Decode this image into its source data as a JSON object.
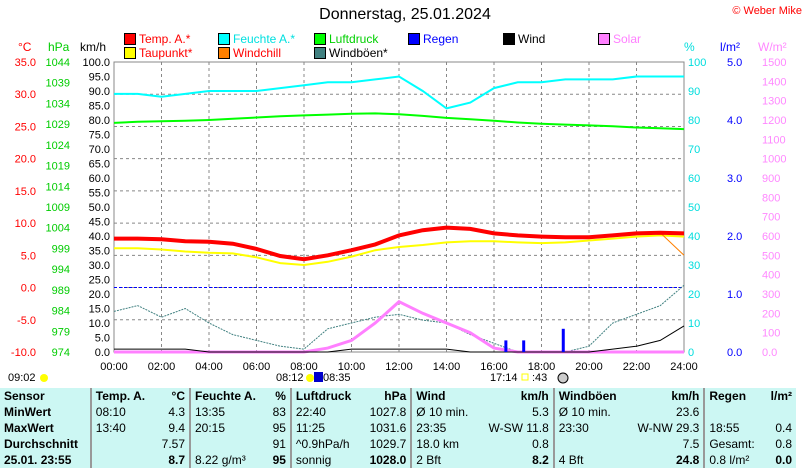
{
  "title": "Donnerstag, 25.01.2024",
  "copyright": "© Weber Mike",
  "axis_units": {
    "temp": "°C",
    "pressure": "hPa",
    "speed": "km/h",
    "humidity": "%",
    "rain": "l/m²",
    "solar": "W/m²"
  },
  "legend": [
    {
      "label": "Temp. A.*",
      "color": "#ff0000",
      "text_color": "#ff0000"
    },
    {
      "label": "Feuchte A.*",
      "color": "#00ffff",
      "text_color": "#00e0e0"
    },
    {
      "label": "Luftdruck",
      "color": "#00ff00",
      "text_color": "#00d000"
    },
    {
      "label": "Regen",
      "color": "#0000ff",
      "text_color": "#0000ff"
    },
    {
      "label": "Wind",
      "color": "#000000",
      "text_color": "#000000"
    },
    {
      "label": "Solar",
      "color": "#ff80ff",
      "text_color": "#ff80ff"
    },
    {
      "label": "Taupunkt*",
      "color": "#ffff00",
      "text_color": "#ff0000"
    },
    {
      "label": "Windchill",
      "color": "#ff8000",
      "text_color": "#ff0000"
    },
    {
      "label": "Windböen*",
      "color": "#408080",
      "text_color": "#000000"
    }
  ],
  "chart_data": {
    "type": "line",
    "x_ticks": [
      "00:00",
      "02:00",
      "04:00",
      "06:00",
      "08:00",
      "10:00",
      "12:00",
      "14:00",
      "16:00",
      "18:00",
      "20:00",
      "22:00",
      "24:00"
    ],
    "temp_ticks": [
      "35.0",
      "30.0",
      "25.0",
      "20.0",
      "15.0",
      "10.0",
      "5.0",
      "0.0",
      "-5.0",
      "-10.0"
    ],
    "pressure_ticks": [
      "1044",
      "1039",
      "1034",
      "1029",
      "1024",
      "1019",
      "1014",
      "1009",
      "1004",
      "999",
      "994",
      "989",
      "984",
      "979",
      "974"
    ],
    "speed_ticks": [
      "100.0",
      "95.0",
      "90.0",
      "85.0",
      "80.0",
      "75.0",
      "70.0",
      "65.0",
      "60.0",
      "55.0",
      "50.0",
      "45.0",
      "40.0",
      "35.0",
      "30.0",
      "25.0",
      "20.0",
      "15.0",
      "10.0",
      "5.0",
      "0.0"
    ],
    "humidity_ticks": [
      "100",
      "90",
      "80",
      "70",
      "60",
      "50",
      "40",
      "30",
      "20",
      "10",
      "0"
    ],
    "rain_ticks": [
      "5.0",
      "4.0",
      "3.0",
      "2.0",
      "1.0",
      "0.0"
    ],
    "solar_ticks": [
      "1500",
      "1400",
      "1300",
      "1200",
      "1100",
      "1000",
      "900",
      "800",
      "700",
      "600",
      "500",
      "400",
      "300",
      "200",
      "100",
      "0.0"
    ],
    "hours": [
      0,
      1,
      2,
      3,
      4,
      5,
      6,
      7,
      8,
      9,
      10,
      11,
      12,
      13,
      14,
      15,
      16,
      17,
      18,
      19,
      20,
      21,
      22,
      23,
      24
    ],
    "series": [
      {
        "name": "Temp. A.*",
        "unit": "°C",
        "color": "#ff0000",
        "values": [
          7.6,
          7.6,
          7.5,
          7.2,
          7.1,
          6.8,
          6.0,
          4.9,
          4.4,
          5.0,
          5.8,
          6.7,
          8.1,
          8.9,
          9.3,
          9.1,
          8.4,
          8.1,
          7.9,
          7.8,
          7.8,
          8.1,
          8.4,
          8.5,
          8.4
        ]
      },
      {
        "name": "Taupunkt*",
        "unit": "°C",
        "color": "#ffff00",
        "values": [
          6.1,
          6.1,
          5.9,
          5.6,
          5.4,
          5.3,
          4.7,
          3.8,
          3.5,
          4.0,
          4.8,
          5.8,
          6.3,
          6.6,
          7.0,
          7.2,
          7.2,
          7.0,
          6.9,
          7.0,
          7.3,
          7.6,
          7.9,
          8.1,
          7.9
        ]
      },
      {
        "name": "Windchill",
        "unit": "°C",
        "color": "#ff8000",
        "values": [
          7.6,
          7.6,
          7.5,
          7.2,
          7.1,
          6.8,
          6.0,
          4.9,
          4.4,
          5.0,
          5.8,
          6.7,
          8.1,
          8.9,
          9.3,
          9.1,
          8.4,
          8.1,
          7.9,
          7.8,
          7.8,
          8.1,
          8.4,
          8.5,
          5.0
        ]
      },
      {
        "name": "Feuchte A.*",
        "unit": "%",
        "color": "#00ffff",
        "values": [
          89,
          89,
          88,
          89,
          90,
          90,
          90,
          91,
          92,
          93,
          93,
          94,
          95,
          90,
          84,
          86,
          91,
          93,
          93,
          94,
          94,
          94,
          95,
          95,
          95
        ]
      },
      {
        "name": "Luftdruck",
        "unit": "hPa",
        "color": "#00ff00",
        "values": [
          1029.3,
          1029.6,
          1029.7,
          1029.8,
          1030.0,
          1030.3,
          1030.6,
          1030.9,
          1031.1,
          1031.3,
          1031.5,
          1031.6,
          1031.4,
          1031.0,
          1030.5,
          1030.2,
          1029.8,
          1029.4,
          1029.1,
          1028.9,
          1028.7,
          1028.5,
          1028.2,
          1028.0,
          1027.8
        ]
      },
      {
        "name": "Solar",
        "unit": "W/m²",
        "color": "#ff80ff",
        "values": [
          0,
          0,
          0,
          0,
          0,
          0,
          0,
          0,
          0,
          20,
          60,
          150,
          260,
          200,
          150,
          100,
          20,
          0,
          0,
          0,
          0,
          0,
          0,
          0,
          0
        ]
      },
      {
        "name": "Windböen*",
        "unit": "km/h",
        "color": "#408080",
        "values": [
          14,
          16,
          12,
          15,
          10,
          6,
          4,
          2,
          1,
          8,
          10,
          12,
          13,
          11,
          10,
          6,
          3,
          0,
          0,
          0,
          2,
          10,
          13,
          16,
          23
        ]
      },
      {
        "name": "Wind",
        "unit": "km/h",
        "color": "#000000",
        "values": [
          1,
          1,
          1,
          1,
          0,
          0,
          0,
          0,
          0,
          0,
          1,
          1,
          1,
          1,
          1,
          0,
          0,
          0,
          0,
          0,
          0,
          1,
          2,
          4,
          9
        ]
      }
    ],
    "rain_bars": [
      {
        "time": "16:30",
        "value": 0.2
      },
      {
        "time": "17:15",
        "value": 0.2
      },
      {
        "time": "18:55",
        "value": 0.4
      }
    ],
    "grid": true
  },
  "sun": {
    "clock": "09:02",
    "sunrise": "08:12",
    "moon_left": "08:35",
    "sunset": "17:14",
    "moon_right": ":43"
  },
  "table": {
    "headers": [
      "Sensor",
      "Temp. A.",
      "°C",
      "Feuchte A.",
      "%",
      "Luftdruck",
      "hPa",
      "Wind",
      "km/h",
      "Windböen",
      "km/h",
      "Regen",
      "l/m²"
    ],
    "rows": [
      {
        "label": "MinWert",
        "cells": [
          "08:10",
          "4.3",
          "13:35",
          "83",
          "22:40",
          "1027.8",
          "Ø 10 min.",
          "5.3",
          "Ø 10 min.",
          "23.6",
          "",
          ""
        ]
      },
      {
        "label": "MaxWert",
        "cells": [
          "13:40",
          "9.4",
          "20:15",
          "95",
          "11:25",
          "1031.6",
          "23:35",
          "W-SW 11.8",
          "23:30",
          "W-NW 29.3",
          "18:55",
          "0.4"
        ]
      },
      {
        "label": "Durchschnitt",
        "cells": [
          "",
          "7.57",
          "",
          "91",
          "^0.9hPa/h",
          "1029.7",
          "18.0 km",
          "0.8",
          "",
          "7.5",
          "Gesamt:",
          "0.8"
        ]
      },
      {
        "label": "25.01. 23:55",
        "cells": [
          "",
          "8.7",
          "8.22 g/m³",
          "95",
          "sonnig",
          "1028.0",
          "2 Bft",
          "8.2",
          "4 Bft",
          "24.8",
          "0.8 l/m²",
          "0.0"
        ]
      }
    ]
  }
}
